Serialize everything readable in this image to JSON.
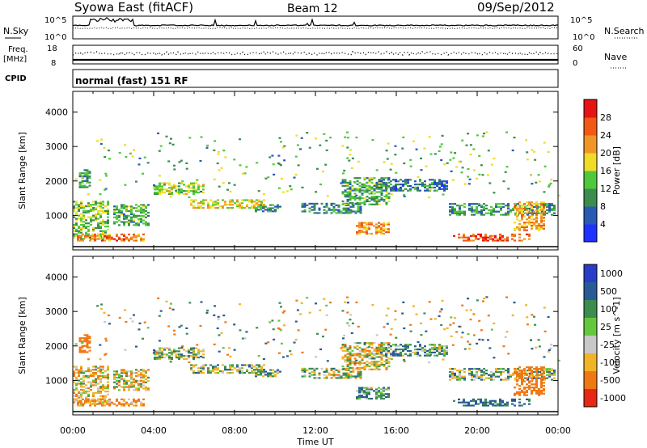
{
  "header": {
    "station": "Syowa East (fitACF)",
    "beam": "Beam 12",
    "date": "09/Sep/2012"
  },
  "panels": {
    "nsky": {
      "label": "N.Sky",
      "tick_hi": "10^5",
      "tick_lo": "10^0",
      "right_label": "N.Search",
      "right_hi": "10^5",
      "right_lo": "10^0"
    },
    "freq": {
      "label": "Freq.",
      "unit": "[MHz]",
      "tick_hi": "18",
      "tick_lo": "8",
      "right_label": "Nave",
      "right_hi": "60",
      "right_lo": "0"
    },
    "cpid": {
      "label": "CPID",
      "mode_text": "normal (fast) 151 RF"
    }
  },
  "chart_data": [
    {
      "type": "heatmap",
      "name": "power",
      "ylabel": "Slant Range [km]",
      "y_ticks": [
        "1000",
        "2000",
        "3000",
        "4000"
      ],
      "ylim": [
        0,
        4600
      ],
      "colorbar_label": "Power [dB]",
      "colorbar_ticks": [
        "4",
        "8",
        "12",
        "16",
        "20",
        "24",
        "28"
      ],
      "colors": [
        "#1e32ff",
        "#285ab4",
        "#3c8c50",
        "#50c83c",
        "#f0dc28",
        "#f09628",
        "#f05a14",
        "#e61414"
      ]
    },
    {
      "type": "heatmap",
      "name": "velocity",
      "ylabel": "Slant Range [km]",
      "y_ticks": [
        "1000",
        "2000",
        "3000",
        "4000"
      ],
      "ylim": [
        0,
        4600
      ],
      "colorbar_label": "Velocity [m s^-1]",
      "colorbar_ticks": [
        "1000",
        "500",
        "100",
        "25",
        "-25",
        "-100",
        "-500",
        "-1000"
      ],
      "colors": [
        "#283cc8",
        "#285a96",
        "#3c8c50",
        "#64c83c",
        "#c8c8c8",
        "#f0b428",
        "#f07814",
        "#e62814"
      ]
    }
  ],
  "x_axis": {
    "label": "Time UT",
    "ticks": [
      "00:00",
      "04:00",
      "08:00",
      "12:00",
      "16:00",
      "20:00",
      "00:00"
    ]
  },
  "echo_bands": [
    {
      "t0": 0.0,
      "t1": 1.8,
      "r0": 300,
      "r1": 1400,
      "p": 14,
      "v": -60
    },
    {
      "t0": 0.2,
      "t1": 3.5,
      "r0": 250,
      "r1": 450,
      "p": 24,
      "v": -120
    },
    {
      "t0": 0.3,
      "t1": 0.9,
      "r0": 1800,
      "r1": 2300,
      "p": 10,
      "v": -300
    },
    {
      "t0": 2.0,
      "t1": 3.7,
      "r0": 700,
      "r1": 1300,
      "p": 12,
      "v": -60
    },
    {
      "t0": 4.0,
      "t1": 6.5,
      "r0": 1600,
      "r1": 1950,
      "p": 16,
      "v": 10
    },
    {
      "t0": 5.8,
      "t1": 9.5,
      "r0": 1200,
      "r1": 1450,
      "p": 18,
      "v": 5
    },
    {
      "t0": 9.0,
      "t1": 10.3,
      "r0": 1100,
      "r1": 1300,
      "p": 10,
      "v": 30
    },
    {
      "t0": 11.3,
      "t1": 14.2,
      "r0": 1050,
      "r1": 1350,
      "p": 10,
      "v": 0
    },
    {
      "t0": 13.3,
      "t1": 15.6,
      "r0": 1300,
      "r1": 2100,
      "p": 12,
      "v": -40
    },
    {
      "t0": 14.0,
      "t1": 15.6,
      "r0": 450,
      "r1": 800,
      "p": 22,
      "v": 80
    },
    {
      "t0": 15.2,
      "t1": 18.5,
      "r0": 1700,
      "r1": 2050,
      "p": 8,
      "v": 60
    },
    {
      "t0": 18.6,
      "t1": 23.8,
      "r0": 1000,
      "r1": 1350,
      "p": 10,
      "v": 20
    },
    {
      "t0": 18.8,
      "t1": 22.6,
      "r0": 250,
      "r1": 450,
      "p": 26,
      "v": 140
    },
    {
      "t0": 21.8,
      "t1": 23.3,
      "r0": 550,
      "r1": 1400,
      "p": 22,
      "v": -300
    }
  ]
}
